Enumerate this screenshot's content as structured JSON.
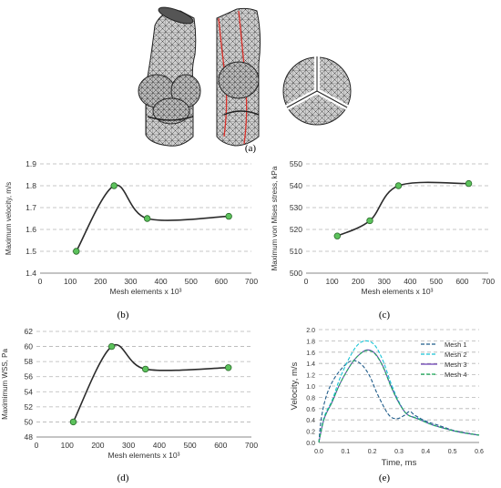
{
  "panel_labels": {
    "a": "(a)",
    "b": "(b)",
    "c": "(c)",
    "d": "(d)",
    "e": "(e)"
  },
  "chart_data": [
    {
      "panel": "b",
      "type": "line",
      "xlabel": "Mesh elements x 10³",
      "ylabel": "Maximum velocity, m/s",
      "xlim": [
        0,
        700
      ],
      "ylim": [
        1.4,
        1.9
      ],
      "xticks": [
        0,
        100,
        200,
        300,
        400,
        500,
        600,
        700
      ],
      "yticks": [
        1.4,
        1.5,
        1.6,
        1.7,
        1.8,
        1.9
      ],
      "ytick_labels": [
        "1.4",
        "1.5",
        "1.6",
        "1.7",
        "1.8",
        "1.9"
      ],
      "grid": "horizontal dashed",
      "series": [
        {
          "x": [
            120,
            245,
            355,
            625
          ],
          "y": [
            1.5,
            1.8,
            1.65,
            1.66
          ]
        }
      ]
    },
    {
      "panel": "c",
      "type": "line",
      "xlabel": "Mesh elements x 10³",
      "ylabel": "Maximum von Mises stress, kPa",
      "xlim": [
        0,
        700
      ],
      "ylim": [
        500,
        550
      ],
      "xticks": [
        0,
        100,
        200,
        300,
        400,
        500,
        600,
        700
      ],
      "yticks": [
        500,
        510,
        520,
        530,
        540,
        550
      ],
      "ytick_labels": [
        "500",
        "510",
        "520",
        "530",
        "540",
        "550"
      ],
      "grid": "horizontal dashed",
      "series": [
        {
          "x": [
            120,
            245,
            355,
            625
          ],
          "y": [
            517,
            524,
            540,
            541
          ]
        }
      ]
    },
    {
      "panel": "d",
      "type": "line",
      "xlabel": "Mesh elements x 10³",
      "ylabel": "Maximimum WSS, Pa",
      "xlim": [
        0,
        700
      ],
      "ylim": [
        48,
        62
      ],
      "xticks": [
        0,
        100,
        200,
        300,
        400,
        500,
        600,
        700
      ],
      "yticks": [
        48,
        50,
        52,
        54,
        56,
        58,
        60,
        62
      ],
      "ytick_labels": [
        "48",
        "50",
        "52",
        "54",
        "56",
        "58",
        "60",
        "62"
      ],
      "grid": "horizontal dashed",
      "series": [
        {
          "x": [
            120,
            245,
            355,
            625
          ],
          "y": [
            50,
            60,
            57,
            57.2
          ]
        }
      ]
    },
    {
      "panel": "e",
      "type": "line",
      "xlabel": "Time, ms",
      "ylabel": "Velocity, m/s",
      "xlim": [
        0,
        0.6
      ],
      "ylim": [
        0,
        2.0
      ],
      "xticks": [
        0,
        0.1,
        0.2,
        0.3,
        0.4,
        0.5,
        0.6
      ],
      "xtick_labels": [
        "0.0",
        "0.1",
        "0.2",
        "0.3",
        "0.4",
        "0.5",
        "0.6"
      ],
      "yticks": [
        0,
        0.2,
        0.4,
        0.6,
        0.8,
        1.0,
        1.2,
        1.4,
        1.6,
        1.8,
        2.0
      ],
      "ytick_labels": [
        "0.0",
        "0.2",
        "0.4",
        "0.6",
        "0.8",
        "1.0",
        "1.2",
        "1.4",
        "1.6",
        "1.8",
        "2.0"
      ],
      "grid": "horizontal dashed",
      "legend": "top-right",
      "series": [
        {
          "name": "Mesh 1",
          "color": "#1f5c8a",
          "dash": "dashed",
          "x": [
            0,
            0.01,
            0.03,
            0.06,
            0.1,
            0.13,
            0.16,
            0.19,
            0.22,
            0.26,
            0.29,
            0.32,
            0.34,
            0.36,
            0.4,
            0.45,
            0.5,
            0.55,
            0.6
          ],
          "y": [
            0.0,
            0.45,
            0.85,
            1.15,
            1.38,
            1.45,
            1.38,
            1.18,
            0.85,
            0.5,
            0.42,
            0.48,
            0.55,
            0.48,
            0.38,
            0.3,
            0.22,
            0.17,
            0.13
          ]
        },
        {
          "name": "Mesh 2",
          "color": "#17c3d6",
          "dash": "dashed",
          "x": [
            0,
            0.02,
            0.05,
            0.08,
            0.12,
            0.15,
            0.18,
            0.21,
            0.24,
            0.27,
            0.3,
            0.33,
            0.37,
            0.42,
            0.47,
            0.52,
            0.57,
            0.6
          ],
          "y": [
            0.0,
            0.45,
            0.75,
            1.15,
            1.55,
            1.75,
            1.8,
            1.72,
            1.45,
            1.05,
            0.72,
            0.5,
            0.43,
            0.32,
            0.25,
            0.19,
            0.15,
            0.13
          ]
        },
        {
          "name": "Mesh 3",
          "color": "#6a3fb5",
          "dash": "solid",
          "x": [
            0,
            0.02,
            0.05,
            0.08,
            0.12,
            0.15,
            0.18,
            0.21,
            0.24,
            0.27,
            0.3,
            0.33,
            0.37,
            0.42,
            0.47,
            0.52,
            0.57,
            0.6
          ],
          "y": [
            0.0,
            0.42,
            0.72,
            1.05,
            1.38,
            1.55,
            1.64,
            1.58,
            1.35,
            1.0,
            0.7,
            0.5,
            0.42,
            0.32,
            0.25,
            0.19,
            0.15,
            0.13
          ]
        },
        {
          "name": "Mesh 4",
          "color": "#1fae5c",
          "dash": "dashed",
          "x": [
            0,
            0.02,
            0.05,
            0.08,
            0.12,
            0.15,
            0.18,
            0.21,
            0.24,
            0.27,
            0.3,
            0.33,
            0.37,
            0.42,
            0.47,
            0.52,
            0.57,
            0.6
          ],
          "y": [
            0.0,
            0.42,
            0.72,
            1.05,
            1.38,
            1.55,
            1.63,
            1.57,
            1.34,
            0.99,
            0.7,
            0.5,
            0.42,
            0.32,
            0.25,
            0.19,
            0.15,
            0.13
          ]
        }
      ]
    }
  ]
}
